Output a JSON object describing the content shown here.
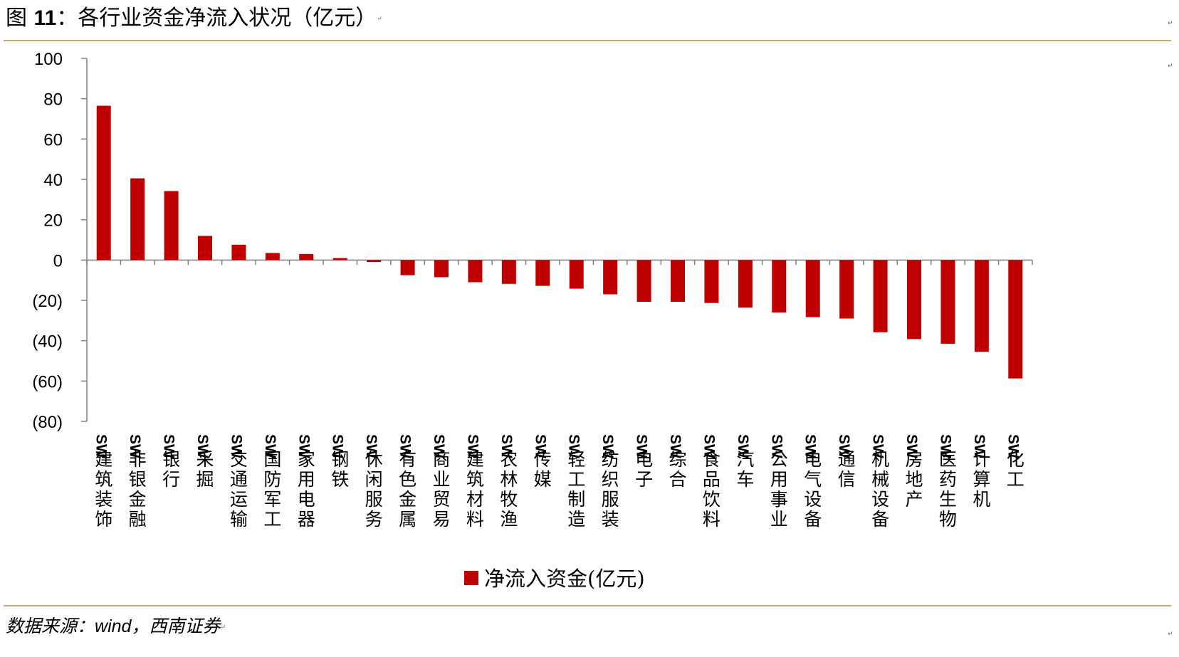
{
  "figure": {
    "label": "图",
    "number": "11",
    "title": "：各行业资金净流入状况（亿元）",
    "source_label": "数据来源：",
    "source_name": "wind",
    "source_sep": "，",
    "source_org": "西南证券",
    "para_mark": "↵"
  },
  "colors": {
    "bar": "#c00000",
    "axis": "#808080",
    "rule": "#c9a96e"
  },
  "chart_data": {
    "type": "bar",
    "title": "各行业资金净流入状况（亿元）",
    "xlabel": "",
    "ylabel": "",
    "ylim": [
      -80,
      100
    ],
    "yticks": [
      100,
      80,
      60,
      40,
      20,
      0,
      -20,
      -40,
      -60,
      -80
    ],
    "ytick_labels": [
      "100",
      "80",
      "60",
      "40",
      "20",
      "0",
      "(20)",
      "(40)",
      "(60)",
      "(80)"
    ],
    "category_prefix": "SW",
    "categories": [
      "建筑装饰",
      "非银金融",
      "银行",
      "采掘",
      "交通运输",
      "国防军工",
      "家用电器",
      "钢铁",
      "休闲服务",
      "有色金属",
      "商业贸易",
      "建筑材料",
      "农林牧渔",
      "传媒",
      "轻工制造",
      "纺织服装",
      "电子",
      "综合",
      "食品饮料",
      "汽车",
      "公用事业",
      "电气设备",
      "通信",
      "机械设备",
      "房地产",
      "医药生物",
      "计算机",
      "化工"
    ],
    "series": [
      {
        "name": "净流入资金(亿元)",
        "values": [
          76.5,
          40.5,
          34.2,
          12.0,
          7.6,
          3.5,
          3.0,
          1.0,
          -1.0,
          -7.5,
          -8.5,
          -11.0,
          -11.8,
          -12.8,
          -14.2,
          -17.0,
          -20.7,
          -20.7,
          -21.3,
          -23.6,
          -26.0,
          -28.3,
          -29.0,
          -35.8,
          -39.2,
          -41.5,
          -45.5,
          -58.7
        ]
      }
    ],
    "legend": "bottom-center",
    "grid": false
  }
}
